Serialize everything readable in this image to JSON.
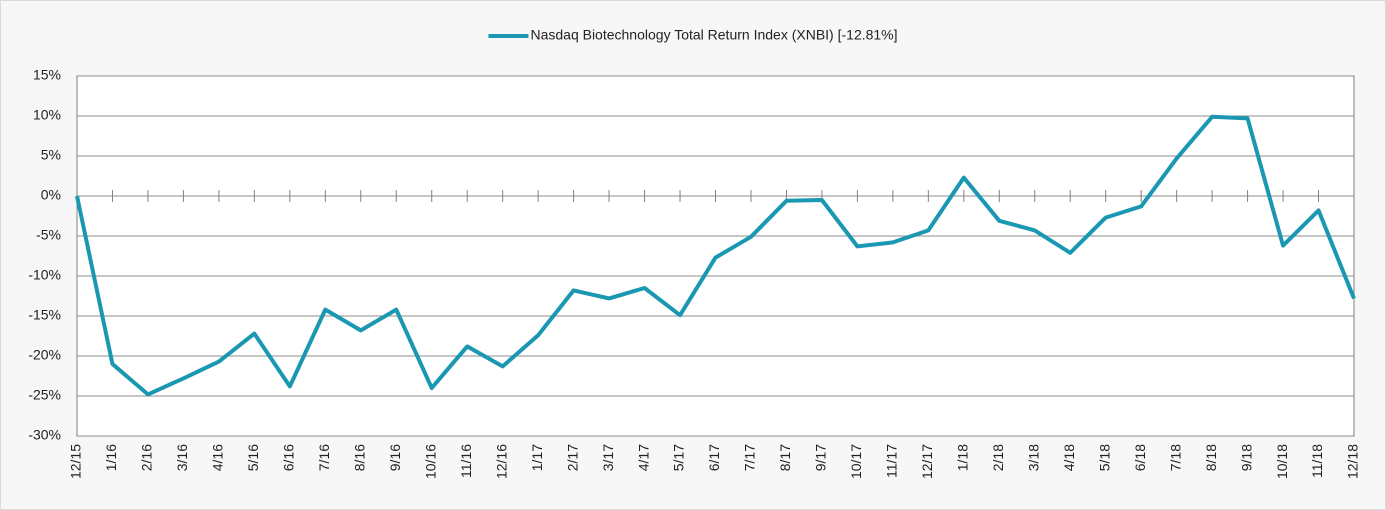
{
  "chart_data": {
    "type": "line",
    "categories": [
      "12/15",
      "1/16",
      "2/16",
      "3/16",
      "4/16",
      "5/16",
      "6/16",
      "7/16",
      "8/16",
      "9/16",
      "10/16",
      "11/16",
      "12/16",
      "1/17",
      "2/17",
      "3/17",
      "4/17",
      "5/17",
      "6/17",
      "7/17",
      "8/17",
      "9/17",
      "10/17",
      "11/17",
      "12/17",
      "1/18",
      "2/18",
      "3/18",
      "4/18",
      "5/18",
      "6/18",
      "7/18",
      "8/18",
      "9/18",
      "10/18",
      "11/18",
      "12/18"
    ],
    "series": [
      {
        "name": "Nasdaq Biotechnology Total Return Index (XNBI) [-12.81%]",
        "color": "#1a97b1",
        "values": [
          0,
          -21,
          -24.8,
          -22.8,
          -20.7,
          -17.2,
          -23.8,
          -14.2,
          -16.8,
          -14.2,
          -24,
          -18.8,
          -21.3,
          -17.4,
          -11.8,
          -12.8,
          -11.5,
          -14.9,
          -7.7,
          -5.1,
          -0.6,
          -0.5,
          -6.3,
          -5.8,
          -4.3,
          2.3,
          -3.1,
          -4.3,
          -7.1,
          -2.7,
          -1.3,
          4.7,
          9.9,
          9.7,
          -6.2,
          -1.8,
          -12.81
        ]
      }
    ],
    "ylim": [
      -30,
      15
    ],
    "yticks": [
      {
        "value": -30,
        "label": "-30%"
      },
      {
        "value": -25,
        "label": "-25%"
      },
      {
        "value": -20,
        "label": "-20%"
      },
      {
        "value": -15,
        "label": "-15%"
      },
      {
        "value": -10,
        "label": "-10%"
      },
      {
        "value": -5,
        "label": "-5%"
      },
      {
        "value": 0,
        "label": "0%"
      },
      {
        "value": 5,
        "label": "5%"
      },
      {
        "value": 10,
        "label": "10%"
      },
      {
        "value": 15,
        "label": "15%"
      }
    ],
    "grid": true,
    "legend": "top"
  }
}
